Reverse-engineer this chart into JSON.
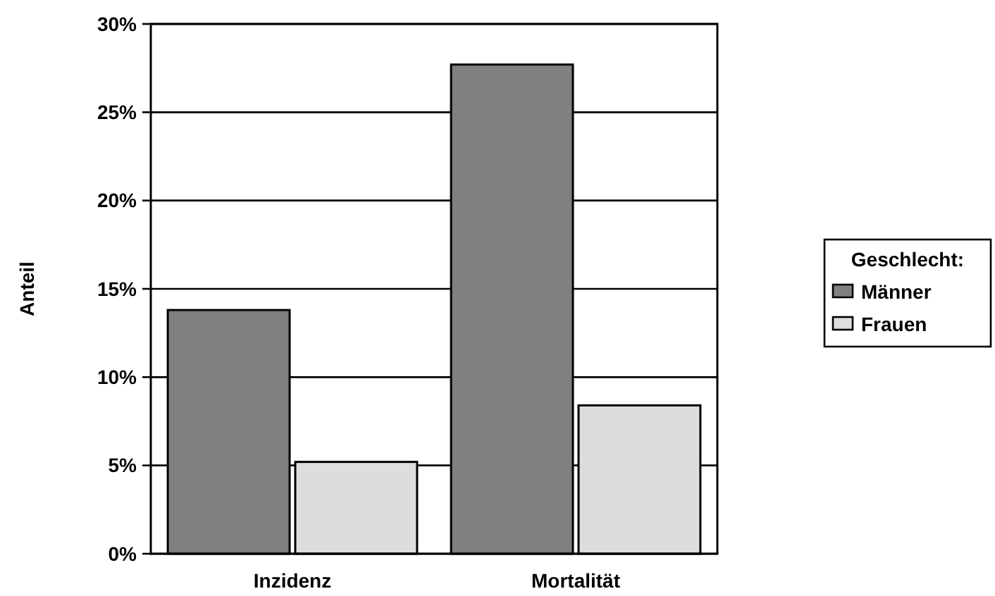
{
  "chart_data": {
    "type": "bar",
    "ylabel": "Anteil",
    "legend_title": "Geschlecht:",
    "categories": [
      "Inzidenz",
      "Mortalität"
    ],
    "series": [
      {
        "name": "Männer",
        "color": "#808080",
        "values": [
          13.8,
          27.7
        ]
      },
      {
        "name": "Frauen",
        "color": "#dddddd",
        "values": [
          5.2,
          8.4
        ]
      }
    ],
    "ylim": [
      0,
      30
    ],
    "yticks": [
      {
        "value": 0,
        "label": "0%"
      },
      {
        "value": 5,
        "label": "5%"
      },
      {
        "value": 10,
        "label": "10%"
      },
      {
        "value": 15,
        "label": "15%"
      },
      {
        "value": 20,
        "label": "20%"
      },
      {
        "value": 25,
        "label": "25%"
      },
      {
        "value": 30,
        "label": "30%"
      }
    ],
    "grid": "y",
    "legend": "right"
  }
}
